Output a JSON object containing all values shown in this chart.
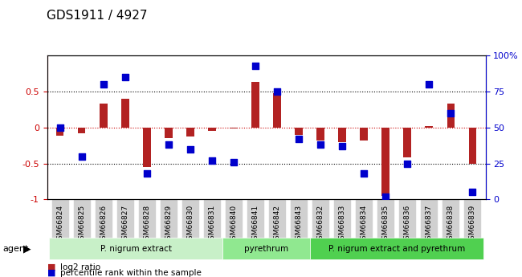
{
  "title": "GDS1911 / 4927",
  "samples": [
    "GSM66824",
    "GSM66825",
    "GSM66826",
    "GSM66827",
    "GSM66828",
    "GSM66829",
    "GSM66830",
    "GSM66831",
    "GSM66840",
    "GSM66841",
    "GSM66842",
    "GSM66843",
    "GSM66832",
    "GSM66833",
    "GSM66834",
    "GSM66835",
    "GSM66836",
    "GSM66837",
    "GSM66838",
    "GSM66839"
  ],
  "log2_ratio": [
    -0.12,
    -0.08,
    0.33,
    0.4,
    -0.55,
    -0.15,
    -0.13,
    -0.05,
    -0.02,
    0.63,
    0.48,
    -0.1,
    -0.18,
    -0.2,
    -0.18,
    -0.95,
    -0.42,
    0.02,
    0.33,
    -0.5
  ],
  "percentile": [
    50,
    30,
    80,
    85,
    18,
    38,
    35,
    27,
    26,
    93,
    75,
    42,
    38,
    37,
    18,
    2,
    25,
    80,
    60,
    5
  ],
  "groups": [
    {
      "label": "P. nigrum extract",
      "start": 0,
      "end": 8,
      "color": "#c8f0c8"
    },
    {
      "label": "pyrethrum",
      "start": 8,
      "end": 12,
      "color": "#90e890"
    },
    {
      "label": "P. nigrum extract and pyrethrum",
      "start": 12,
      "end": 20,
      "color": "#50d050"
    }
  ],
  "bar_color": "#b22222",
  "dot_color": "#0000cc",
  "zero_line_color": "#cc0000",
  "ylim": [
    -1.0,
    1.0
  ],
  "yticks_left": [
    -1,
    -0.5,
    0,
    0.5
  ],
  "yticks_right": [
    0,
    25,
    50,
    75,
    100
  ],
  "hline_values": [
    0.5,
    0,
    -0.5
  ],
  "agent_label": "agent"
}
